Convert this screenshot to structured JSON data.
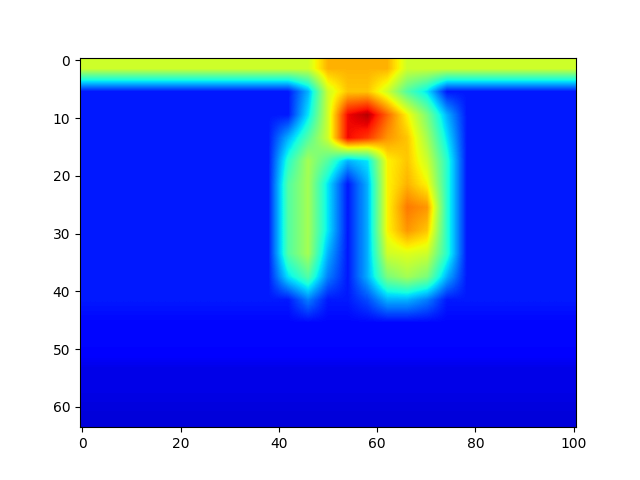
{
  "chart_data": {
    "type": "heatmap",
    "xlim": [
      -0.5,
      100.5
    ],
    "ylim": [
      63.5,
      -0.5
    ],
    "xticks": [
      0,
      20,
      40,
      60,
      80,
      100
    ],
    "yticks": [
      0,
      10,
      20,
      30,
      40,
      50,
      60
    ],
    "value_range": [
      0,
      1
    ],
    "cells": [
      [
        0.6,
        0.6,
        0.6,
        0.6,
        0.6,
        0.6,
        0.6,
        0.6,
        0.6,
        0.6,
        0.6,
        0.6,
        0.72,
        0.72,
        0.72,
        0.72,
        0.6,
        0.6,
        0.6,
        0.6,
        0.6,
        0.6,
        0.6,
        0.6,
        0.6
      ],
      [
        0.15,
        0.15,
        0.15,
        0.15,
        0.15,
        0.15,
        0.15,
        0.15,
        0.15,
        0.15,
        0.15,
        0.3,
        0.6,
        0.7,
        0.7,
        0.6,
        0.45,
        0.35,
        0.15,
        0.15,
        0.15,
        0.15,
        0.15,
        0.15,
        0.15
      ],
      [
        0.15,
        0.15,
        0.15,
        0.15,
        0.15,
        0.15,
        0.15,
        0.15,
        0.15,
        0.15,
        0.15,
        0.35,
        0.6,
        0.9,
        0.95,
        0.8,
        0.65,
        0.5,
        0.3,
        0.15,
        0.15,
        0.15,
        0.15,
        0.15,
        0.15
      ],
      [
        0.15,
        0.15,
        0.15,
        0.15,
        0.15,
        0.15,
        0.15,
        0.15,
        0.15,
        0.15,
        0.3,
        0.45,
        0.6,
        0.9,
        0.85,
        0.75,
        0.7,
        0.55,
        0.35,
        0.15,
        0.15,
        0.15,
        0.15,
        0.15,
        0.15
      ],
      [
        0.15,
        0.15,
        0.15,
        0.15,
        0.15,
        0.15,
        0.15,
        0.15,
        0.15,
        0.15,
        0.4,
        0.55,
        0.45,
        0.3,
        0.35,
        0.65,
        0.7,
        0.6,
        0.4,
        0.15,
        0.15,
        0.15,
        0.15,
        0.15,
        0.15
      ],
      [
        0.15,
        0.15,
        0.15,
        0.15,
        0.15,
        0.15,
        0.15,
        0.15,
        0.15,
        0.15,
        0.45,
        0.55,
        0.35,
        0.15,
        0.3,
        0.65,
        0.72,
        0.65,
        0.4,
        0.15,
        0.15,
        0.15,
        0.15,
        0.15,
        0.15
      ],
      [
        0.15,
        0.15,
        0.15,
        0.15,
        0.15,
        0.15,
        0.15,
        0.15,
        0.15,
        0.15,
        0.45,
        0.55,
        0.35,
        0.15,
        0.3,
        0.65,
        0.78,
        0.75,
        0.4,
        0.15,
        0.15,
        0.15,
        0.15,
        0.15,
        0.15
      ],
      [
        0.15,
        0.15,
        0.15,
        0.15,
        0.15,
        0.15,
        0.15,
        0.15,
        0.15,
        0.15,
        0.45,
        0.55,
        0.35,
        0.15,
        0.3,
        0.65,
        0.75,
        0.7,
        0.4,
        0.15,
        0.15,
        0.15,
        0.15,
        0.15,
        0.15
      ],
      [
        0.15,
        0.15,
        0.15,
        0.15,
        0.15,
        0.15,
        0.15,
        0.15,
        0.15,
        0.15,
        0.45,
        0.55,
        0.3,
        0.15,
        0.3,
        0.6,
        0.62,
        0.6,
        0.4,
        0.15,
        0.15,
        0.15,
        0.15,
        0.15,
        0.15
      ],
      [
        0.15,
        0.15,
        0.15,
        0.15,
        0.15,
        0.15,
        0.15,
        0.15,
        0.15,
        0.15,
        0.35,
        0.45,
        0.25,
        0.15,
        0.3,
        0.5,
        0.55,
        0.5,
        0.3,
        0.15,
        0.15,
        0.15,
        0.15,
        0.15,
        0.15
      ],
      [
        0.15,
        0.15,
        0.15,
        0.15,
        0.15,
        0.15,
        0.15,
        0.15,
        0.15,
        0.15,
        0.15,
        0.25,
        0.15,
        0.15,
        0.2,
        0.3,
        0.3,
        0.25,
        0.15,
        0.15,
        0.15,
        0.15,
        0.15,
        0.15,
        0.15
      ],
      [
        0.13,
        0.13,
        0.13,
        0.13,
        0.13,
        0.13,
        0.13,
        0.13,
        0.13,
        0.13,
        0.13,
        0.13,
        0.13,
        0.13,
        0.13,
        0.13,
        0.13,
        0.13,
        0.13,
        0.13,
        0.13,
        0.13,
        0.13,
        0.13,
        0.13
      ],
      [
        0.13,
        0.13,
        0.13,
        0.13,
        0.13,
        0.13,
        0.13,
        0.13,
        0.13,
        0.13,
        0.13,
        0.13,
        0.13,
        0.13,
        0.13,
        0.13,
        0.13,
        0.13,
        0.13,
        0.13,
        0.13,
        0.13,
        0.13,
        0.13,
        0.13
      ],
      [
        0.09,
        0.09,
        0.09,
        0.09,
        0.09,
        0.09,
        0.09,
        0.09,
        0.09,
        0.09,
        0.09,
        0.09,
        0.09,
        0.09,
        0.09,
        0.09,
        0.09,
        0.09,
        0.09,
        0.09,
        0.09,
        0.09,
        0.09,
        0.09,
        0.09
      ],
      [
        0.09,
        0.09,
        0.09,
        0.09,
        0.09,
        0.09,
        0.09,
        0.09,
        0.09,
        0.09,
        0.09,
        0.09,
        0.09,
        0.09,
        0.09,
        0.09,
        0.09,
        0.09,
        0.09,
        0.09,
        0.09,
        0.09,
        0.09,
        0.09,
        0.09
      ],
      [
        0.08,
        0.08,
        0.08,
        0.08,
        0.08,
        0.08,
        0.08,
        0.08,
        0.08,
        0.08,
        0.08,
        0.08,
        0.08,
        0.08,
        0.08,
        0.08,
        0.08,
        0.08,
        0.08,
        0.08,
        0.08,
        0.08,
        0.08,
        0.08,
        0.08
      ]
    ]
  }
}
